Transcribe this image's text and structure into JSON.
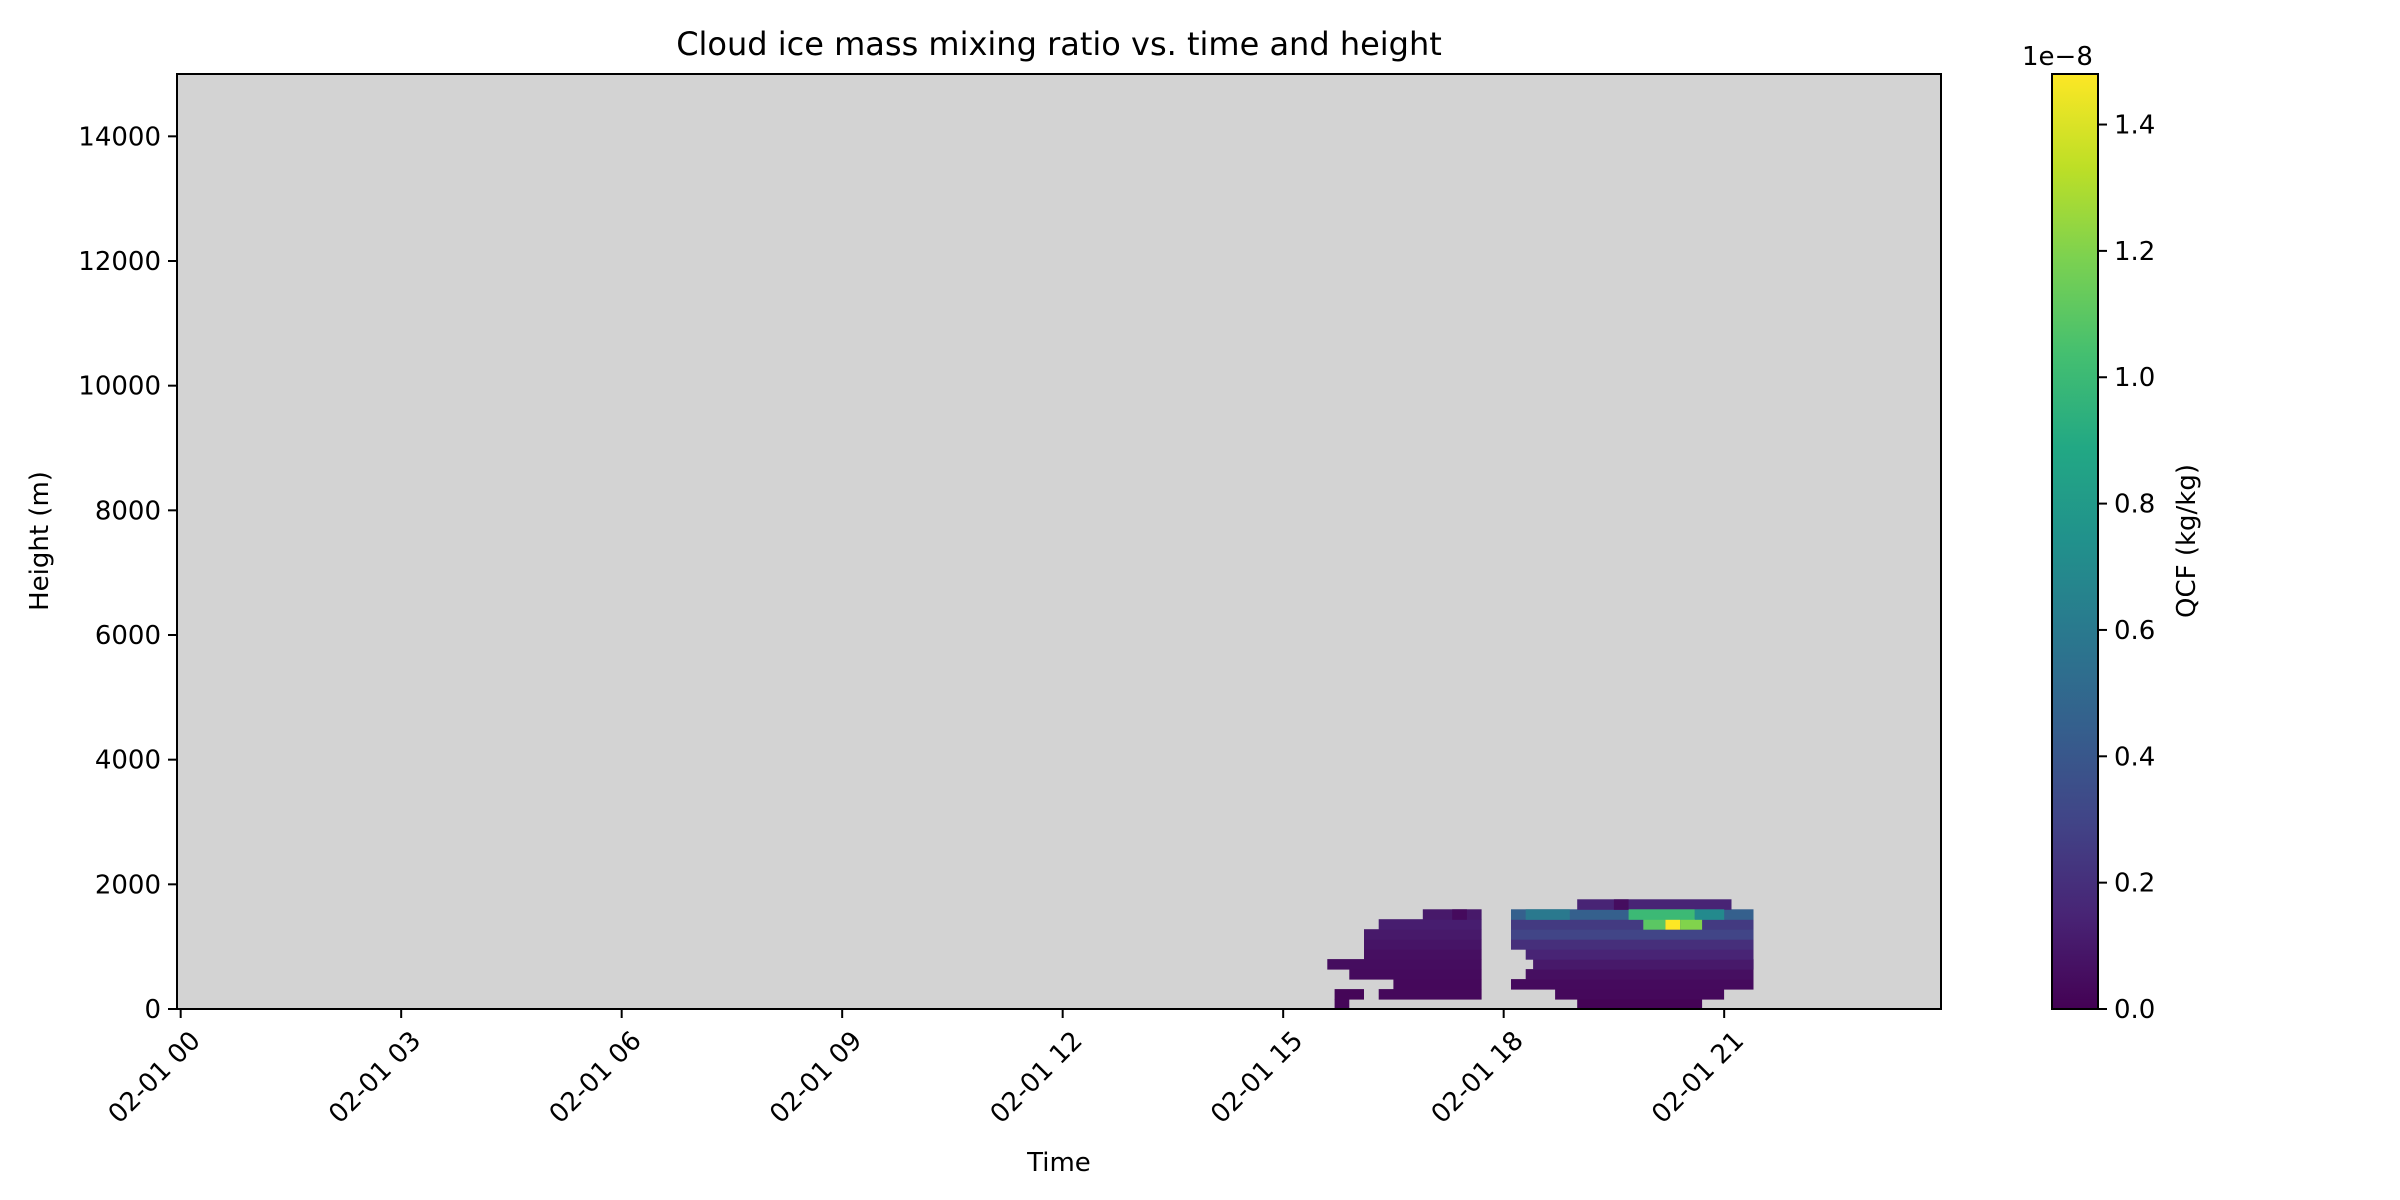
{
  "chart_data": {
    "type": "heatmap",
    "title": "Cloud ice mass mixing ratio vs. time and height",
    "xlabel": "Time",
    "ylabel": "Height (m)",
    "x_ticks": [
      "02-01 00",
      "02-01 03",
      "02-01 06",
      "02-01 09",
      "02-01 12",
      "02-01 15",
      "02-01 18",
      "02-01 21"
    ],
    "x_tick_hours": [
      0,
      3,
      6,
      9,
      12,
      15,
      18,
      21
    ],
    "xlim_hours": [
      -0.05,
      23.95
    ],
    "y_ticks": [
      0,
      2000,
      4000,
      6000,
      8000,
      10000,
      12000,
      14000
    ],
    "ylim": [
      0,
      15000
    ],
    "colorbar": {
      "label": "QCF (kg/kg)",
      "offset_text": "1e−8",
      "ticks": [
        0.0,
        0.2,
        0.4,
        0.6,
        0.8,
        1.0,
        1.2,
        1.4
      ],
      "tick_labels": [
        "0.0",
        "0.2",
        "0.4",
        "0.6",
        "0.8",
        "1.0",
        "1.2",
        "1.4"
      ],
      "range": [
        0,
        1.48
      ],
      "colormap": "viridis"
    },
    "background_color": "#d3d3d3",
    "cell_height_m": 160,
    "regions": [
      {
        "rows": [
          [
            0,
            15.7,
            15.9,
            0.02
          ],
          [
            1,
            15.7,
            16.1,
            0.02
          ],
          [
            1,
            16.3,
            17.7,
            0.03
          ],
          [
            2,
            16.5,
            17.7,
            0.03
          ],
          [
            3,
            15.9,
            17.7,
            0.04
          ],
          [
            4,
            15.6,
            17.7,
            0.05
          ],
          [
            5,
            16.1,
            17.7,
            0.06
          ],
          [
            6,
            16.1,
            17.7,
            0.08
          ],
          [
            7,
            16.1,
            17.7,
            0.1
          ],
          [
            8,
            16.3,
            17.7,
            0.12
          ],
          [
            9,
            16.9,
            17.7,
            0.1
          ],
          [
            9,
            17.3,
            17.5,
            0.04
          ]
        ]
      },
      {
        "rows": [
          [
            0,
            19.0,
            20.7,
            0.01
          ],
          [
            1,
            18.7,
            21.0,
            0.03
          ],
          [
            2,
            18.1,
            21.4,
            0.04
          ],
          [
            3,
            18.3,
            21.4,
            0.06
          ],
          [
            4,
            18.4,
            21.4,
            0.1
          ],
          [
            5,
            18.3,
            21.4,
            0.15
          ],
          [
            6,
            18.1,
            21.4,
            0.2
          ],
          [
            7,
            18.1,
            21.4,
            0.3
          ],
          [
            8,
            18.1,
            21.4,
            0.25
          ],
          [
            9,
            18.1,
            21.4,
            0.45
          ],
          [
            10,
            19.0,
            21.1,
            0.15
          ],
          [
            9,
            18.3,
            18.9,
            0.6
          ],
          [
            8,
            19.9,
            20.2,
            1.1
          ],
          [
            8,
            20.2,
            20.4,
            1.48
          ],
          [
            8,
            20.4,
            20.7,
            1.2
          ],
          [
            9,
            19.7,
            20.6,
            1.0
          ],
          [
            9,
            20.6,
            21.0,
            0.7
          ],
          [
            10,
            19.5,
            19.7,
            0.05
          ]
        ]
      }
    ]
  }
}
